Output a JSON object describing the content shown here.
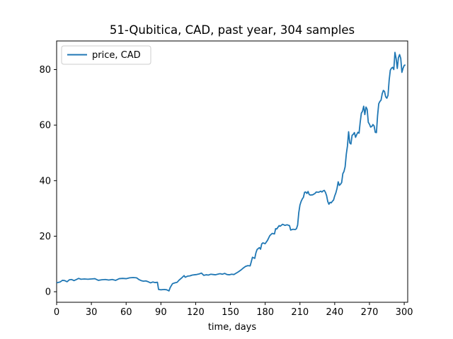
{
  "chart_data": {
    "type": "line",
    "title": "51-Qubitica, CAD, past year, 304 samples",
    "xlabel": "time, days",
    "ylabel": "",
    "xlim": [
      0,
      303
    ],
    "ylim": [
      -3.8,
      90.3
    ],
    "xticks": [
      0,
      30,
      60,
      90,
      120,
      150,
      180,
      210,
      240,
      270,
      300
    ],
    "yticks": [
      0,
      20,
      40,
      60,
      80
    ],
    "grid": false,
    "legend": "top-left",
    "series": [
      {
        "name": "price, CAD",
        "color": "#1f77b4",
        "points": [
          [
            0,
            3.2
          ],
          [
            3,
            3.5
          ],
          [
            5,
            4.1
          ],
          [
            7,
            4.0
          ],
          [
            9,
            3.6
          ],
          [
            11,
            4.3
          ],
          [
            13,
            4.4
          ],
          [
            15,
            4.0
          ],
          [
            17,
            4.4
          ],
          [
            19,
            4.8
          ],
          [
            21,
            4.5
          ],
          [
            24,
            4.6
          ],
          [
            27,
            4.5
          ],
          [
            30,
            4.6
          ],
          [
            33,
            4.7
          ],
          [
            36,
            4.1
          ],
          [
            39,
            4.3
          ],
          [
            42,
            4.4
          ],
          [
            45,
            4.2
          ],
          [
            48,
            4.4
          ],
          [
            51,
            4.1
          ],
          [
            54,
            4.7
          ],
          [
            57,
            4.8
          ],
          [
            60,
            4.7
          ],
          [
            63,
            5.0
          ],
          [
            66,
            5.1
          ],
          [
            69,
            5.0
          ],
          [
            71,
            4.4
          ],
          [
            73,
            4.0
          ],
          [
            75,
            3.8
          ],
          [
            77,
            3.9
          ],
          [
            79,
            3.6
          ],
          [
            81,
            3.2
          ],
          [
            83,
            3.5
          ],
          [
            85,
            3.3
          ],
          [
            87,
            3.4
          ],
          [
            88,
            0.8
          ],
          [
            90,
            0.7
          ],
          [
            93,
            0.8
          ],
          [
            95,
            0.7
          ],
          [
            97,
            0.3
          ],
          [
            98,
            1.5
          ],
          [
            100,
            2.9
          ],
          [
            102,
            3.2
          ],
          [
            104,
            3.4
          ],
          [
            106,
            4.3
          ],
          [
            108,
            5.0
          ],
          [
            110,
            5.8
          ],
          [
            111,
            5.2
          ],
          [
            113,
            5.6
          ],
          [
            115,
            5.7
          ],
          [
            117,
            6.0
          ],
          [
            119,
            6.1
          ],
          [
            121,
            6.2
          ],
          [
            123,
            6.4
          ],
          [
            125,
            6.7
          ],
          [
            127,
            5.9
          ],
          [
            129,
            6.1
          ],
          [
            131,
            6.0
          ],
          [
            133,
            6.3
          ],
          [
            135,
            6.2
          ],
          [
            137,
            6.1
          ],
          [
            139,
            6.3
          ],
          [
            141,
            6.5
          ],
          [
            143,
            6.3
          ],
          [
            145,
            6.6
          ],
          [
            147,
            6.2
          ],
          [
            149,
            6.1
          ],
          [
            151,
            6.3
          ],
          [
            153,
            6.2
          ],
          [
            155,
            6.7
          ],
          [
            157,
            7.2
          ],
          [
            159,
            7.8
          ],
          [
            161,
            8.5
          ],
          [
            163,
            9.1
          ],
          [
            165,
            9.4
          ],
          [
            167,
            9.3
          ],
          [
            168,
            10.8
          ],
          [
            169,
            12.4
          ],
          [
            171,
            12.0
          ],
          [
            172,
            14.0
          ],
          [
            173,
            15.2
          ],
          [
            175,
            15.9
          ],
          [
            176,
            15.3
          ],
          [
            177,
            17.2
          ],
          [
            178,
            17.6
          ],
          [
            180,
            17.3
          ],
          [
            182,
            18.5
          ],
          [
            184,
            20.2
          ],
          [
            186,
            21.0
          ],
          [
            188,
            20.8
          ],
          [
            189,
            22.7
          ],
          [
            190,
            22.6
          ],
          [
            192,
            23.8
          ],
          [
            193,
            23.6
          ],
          [
            195,
            24.3
          ],
          [
            197,
            23.9
          ],
          [
            199,
            24.1
          ],
          [
            201,
            23.8
          ],
          [
            202,
            22.2
          ],
          [
            204,
            22.5
          ],
          [
            206,
            22.4
          ],
          [
            207,
            22.7
          ],
          [
            208,
            24.0
          ],
          [
            209,
            28.5
          ],
          [
            210,
            31.2
          ],
          [
            211,
            32.5
          ],
          [
            212,
            33.4
          ],
          [
            213,
            34.0
          ],
          [
            214,
            35.8
          ],
          [
            215,
            35.9
          ],
          [
            216,
            35.4
          ],
          [
            217,
            36.1
          ],
          [
            218,
            35.0
          ],
          [
            219,
            34.8
          ],
          [
            221,
            34.9
          ],
          [
            223,
            35.4
          ],
          [
            224,
            35.9
          ],
          [
            226,
            35.8
          ],
          [
            228,
            36.2
          ],
          [
            229,
            35.9
          ],
          [
            230,
            36.3
          ],
          [
            231,
            36.5
          ],
          [
            232,
            35.8
          ],
          [
            233,
            34.6
          ],
          [
            234,
            32.5
          ],
          [
            235,
            31.5
          ],
          [
            236,
            32.2
          ],
          [
            237,
            32.0
          ],
          [
            238,
            32.6
          ],
          [
            239,
            33.0
          ],
          [
            240,
            34.5
          ],
          [
            241,
            35.6
          ],
          [
            242,
            37.2
          ],
          [
            243,
            39.6
          ],
          [
            244,
            38.3
          ],
          [
            245,
            38.7
          ],
          [
            246,
            39.3
          ],
          [
            247,
            42.5
          ],
          [
            248,
            43.3
          ],
          [
            249,
            45.0
          ],
          [
            250,
            49.5
          ],
          [
            251,
            52.5
          ],
          [
            252,
            57.6
          ],
          [
            253,
            53.6
          ],
          [
            254,
            53.2
          ],
          [
            255,
            56.3
          ],
          [
            256,
            56.7
          ],
          [
            257,
            57.3
          ],
          [
            258,
            55.6
          ],
          [
            259,
            56.6
          ],
          [
            260,
            57.4
          ],
          [
            261,
            57.1
          ],
          [
            262,
            61.0
          ],
          [
            263,
            64.3
          ],
          [
            264,
            65.0
          ],
          [
            265,
            66.8
          ],
          [
            266,
            63.8
          ],
          [
            267,
            66.5
          ],
          [
            268,
            65.7
          ],
          [
            269,
            61.0
          ],
          [
            270,
            60.3
          ],
          [
            271,
            59.3
          ],
          [
            272,
            59.5
          ],
          [
            273,
            60.2
          ],
          [
            274,
            59.7
          ],
          [
            275,
            57.4
          ],
          [
            276,
            57.3
          ],
          [
            277,
            63.4
          ],
          [
            278,
            67.7
          ],
          [
            279,
            68.5
          ],
          [
            280,
            69.0
          ],
          [
            281,
            71.3
          ],
          [
            282,
            72.5
          ],
          [
            283,
            72.1
          ],
          [
            284,
            70.2
          ],
          [
            285,
            69.7
          ],
          [
            286,
            70.7
          ],
          [
            287,
            76.2
          ],
          [
            288,
            79.8
          ],
          [
            289,
            80.5
          ],
          [
            290,
            80.8
          ],
          [
            291,
            80.0
          ],
          [
            292,
            86.2
          ],
          [
            293,
            84.0
          ],
          [
            294,
            80.4
          ],
          [
            295,
            84.3
          ],
          [
            296,
            85.4
          ],
          [
            297,
            84.0
          ],
          [
            298,
            79.0
          ],
          [
            299,
            80.5
          ],
          [
            300,
            81.5
          ],
          [
            301,
            81.7
          ]
        ]
      }
    ]
  }
}
